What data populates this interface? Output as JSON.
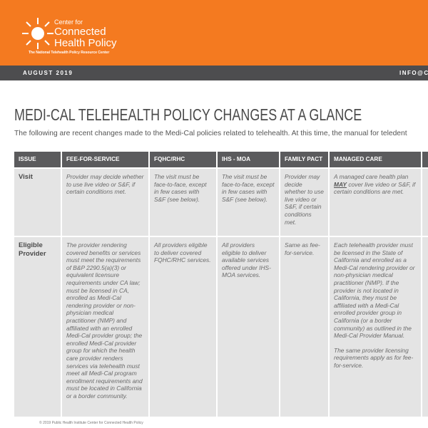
{
  "header": {
    "logo_line1": "Center for",
    "logo_line2": "Connected",
    "logo_line3": "Health Policy",
    "logo_tagline": "The National Telehealth Policy Resource Center",
    "date": "AUGUST 2019",
    "contact": "INFO@CC"
  },
  "title": "MEDI-CAL TELEHEALTH POLICY CHANGES AT A GLANCE",
  "subtitle": "The following are recent changes made to the Medi-Cal policies related to telehealth.  At this time, the manual for teledent",
  "table": {
    "columns": [
      "ISSUE",
      "FEE-FOR-SERVICE",
      "FQHC/RHC",
      "IHS - MOA",
      "FAMILY PACT",
      "MANAGED CARE"
    ],
    "rows": [
      [
        "Visit",
        "Provider may decide whether to use live video or S&F, if certain conditions met.",
        "The visit must be face-to-face, except in few cases with S&F (see below).",
        "The visit must be face-to-face, except in few cases with S&F (see below).",
        "Provider may decide whether to use live video or S&F, if certain conditions met.",
        {
          "before": "A managed care health plan",
          "emphasis": "MAY",
          "after": "cover live video or S&F, if certain conditions are met."
        }
      ],
      [
        "Eligible Provider",
        "The provider rendering covered benefits or services must meet the requirements of B&P 2290.5(a)(3) or equivalent licensure requirements under CA law; must be licensed in CA, enrolled as Medi-Cal rendering provider or non-physician medical practitioner (NMP) and affiliated with an enrolled Medi-Cal provider group; the enrolled Medi-Cal provider group for which the health care provider renders services via telehealth must meet all Medi-Cal program enrollment requirements and must be located in California or a border community.",
        "All providers eligible to deliver covered FQHC/RHC services.",
        "All providers eligible to deliver available services offered under IHS-MOA services.",
        "Same as fee-for-service.",
        [
          "Each telehealth provider must be licensed in the State of California and enrolled as a Medi-Cal rendering provider or non-physician medical practitioner (NMP). If the provider is not located in California, they must be affiliated with a Medi-Cal enrolled provider group in California (or a border community) as outlined in the Medi-Cal Provider Manual.",
          "The same provider licensing requirements apply as for fee-for-service."
        ]
      ]
    ]
  },
  "footer": "© 2019 Public Health Institute Center for Connected Health Policy"
}
